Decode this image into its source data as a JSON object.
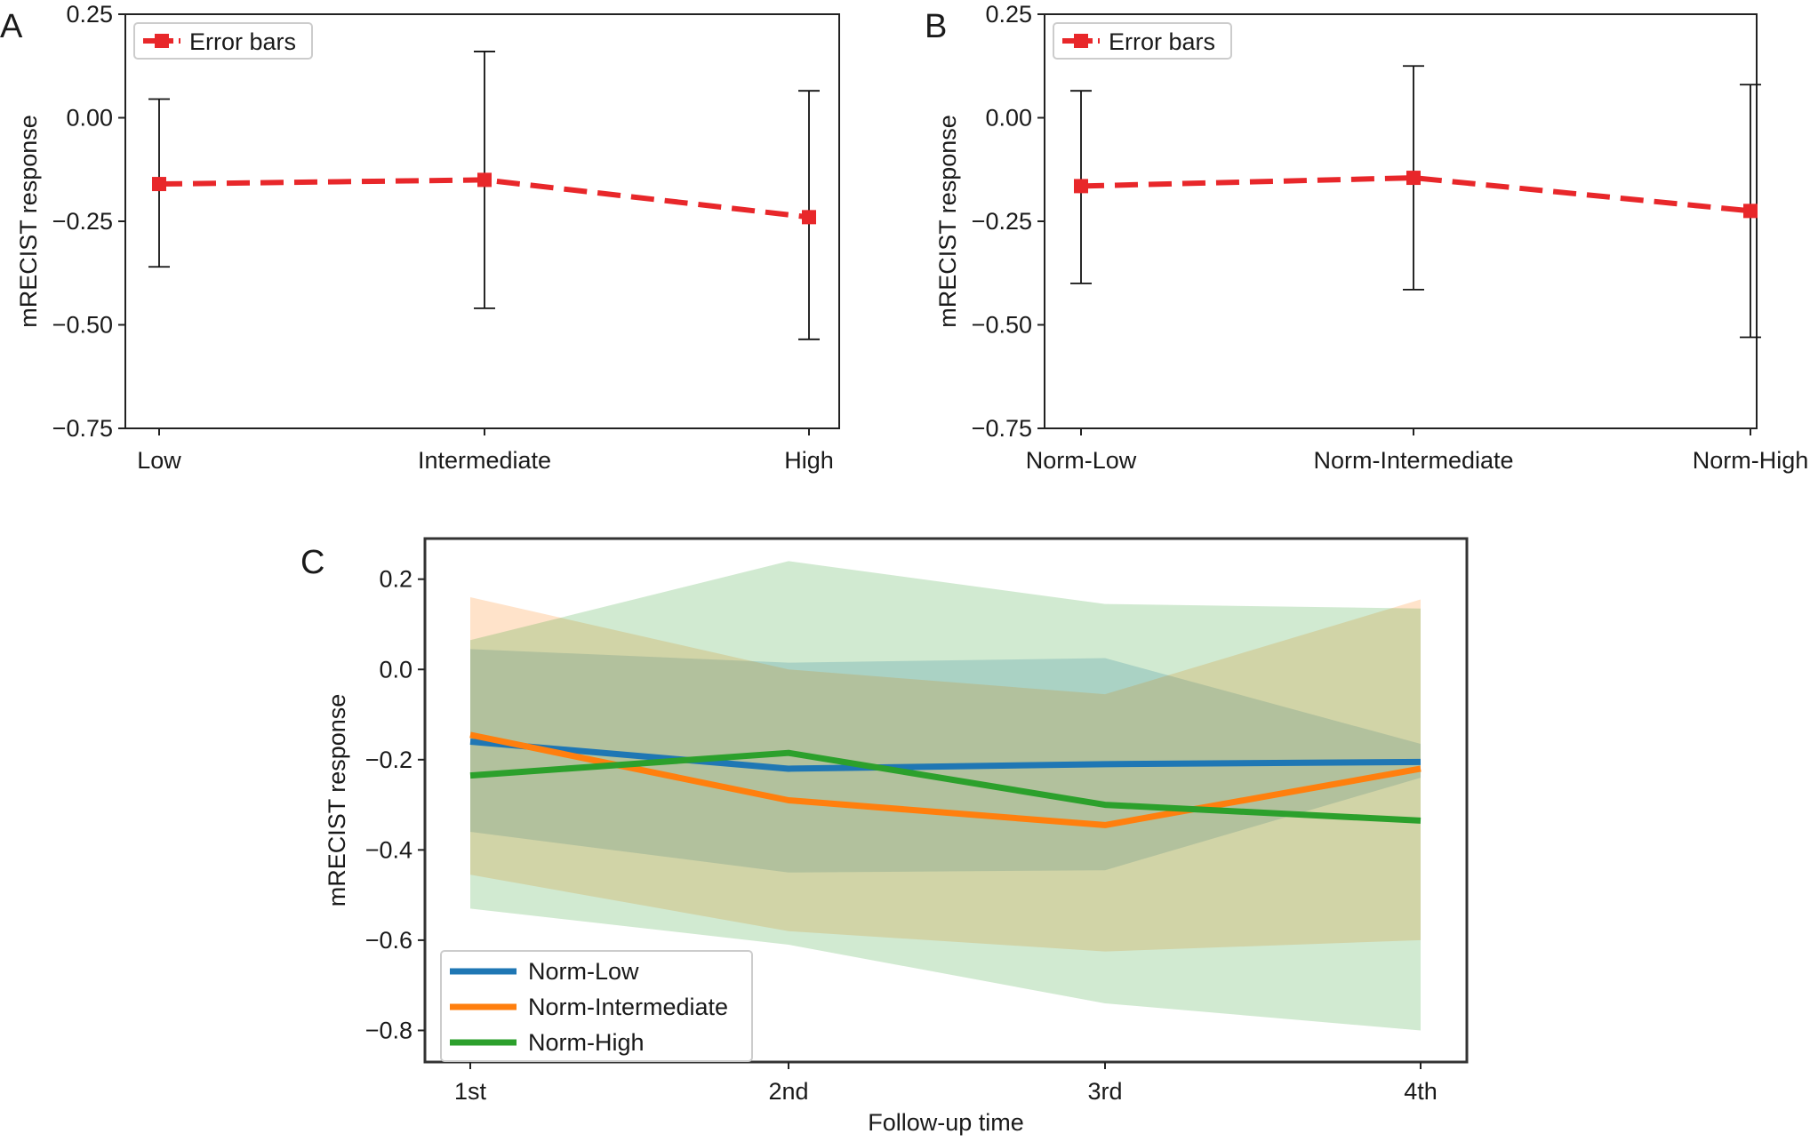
{
  "chart_data": [
    {
      "panel_label": "A",
      "type": "line",
      "error_bars": true,
      "categories": [
        "Low",
        "Intermediate",
        "High"
      ],
      "series": [
        {
          "name": "Error bars",
          "color": "#e8272a",
          "values": [
            -0.16,
            -0.15,
            -0.24
          ],
          "error_lower": [
            -0.36,
            -0.46,
            -0.535
          ],
          "error_upper": [
            0.045,
            0.16,
            0.065
          ]
        }
      ],
      "ylabel": "mRECIST response",
      "ylim": [
        -0.75,
        0.25
      ],
      "yticks": [
        0.25,
        0.0,
        -0.25,
        -0.5,
        -0.75
      ],
      "ytick_labels": [
        "0.25",
        "0.00",
        "−0.25",
        "−0.50",
        "−0.75"
      ],
      "legend_placement": "upper-left",
      "grid": false
    },
    {
      "panel_label": "B",
      "type": "line",
      "error_bars": true,
      "categories": [
        "Norm-Low",
        "Norm-Intermediate",
        "Norm-High"
      ],
      "series": [
        {
          "name": "Error bars",
          "color": "#e8272a",
          "values": [
            -0.165,
            -0.145,
            -0.225
          ],
          "error_lower": [
            -0.4,
            -0.415,
            -0.53
          ],
          "error_upper": [
            0.065,
            0.125,
            0.08
          ]
        }
      ],
      "ylabel": "mRECIST response",
      "ylim": [
        -0.75,
        0.25
      ],
      "yticks": [
        0.25,
        0.0,
        -0.25,
        -0.5,
        -0.75
      ],
      "ytick_labels": [
        "0.25",
        "0.00",
        "−0.25",
        "−0.50",
        "−0.75"
      ],
      "legend_placement": "upper-left",
      "grid": false
    },
    {
      "panel_label": "C",
      "type": "line",
      "confidence_bands": true,
      "x": [
        "1st",
        "2nd",
        "3rd",
        "4th"
      ],
      "series": [
        {
          "name": "Norm-Low",
          "color": "#1f77b4",
          "values": [
            -0.16,
            -0.22,
            -0.21,
            -0.205
          ],
          "band_lower": [
            -0.36,
            -0.45,
            -0.445,
            -0.24
          ],
          "band_upper": [
            0.045,
            0.015,
            0.025,
            -0.165
          ]
        },
        {
          "name": "Norm-Intermediate",
          "color": "#ff7f0e",
          "values": [
            -0.145,
            -0.29,
            -0.345,
            -0.22
          ],
          "band_lower": [
            -0.455,
            -0.58,
            -0.625,
            -0.6
          ],
          "band_upper": [
            0.16,
            0.0,
            -0.055,
            0.155
          ]
        },
        {
          "name": "Norm-High",
          "color": "#2ca02c",
          "values": [
            -0.235,
            -0.185,
            -0.3,
            -0.335
          ],
          "band_lower": [
            -0.53,
            -0.61,
            -0.74,
            -0.8
          ],
          "band_upper": [
            0.065,
            0.24,
            0.145,
            0.135
          ]
        }
      ],
      "xlabel": "Follow-up time",
      "ylabel": "mRECIST response",
      "ylim": [
        -0.87,
        0.29
      ],
      "yticks": [
        0.2,
        0.0,
        -0.2,
        -0.4,
        -0.6,
        -0.8
      ],
      "ytick_labels": [
        "0.2",
        "0.0",
        "−0.2",
        "−0.4",
        "−0.6",
        "−0.8"
      ],
      "legend_placement": "lower-left",
      "grid": false
    }
  ]
}
